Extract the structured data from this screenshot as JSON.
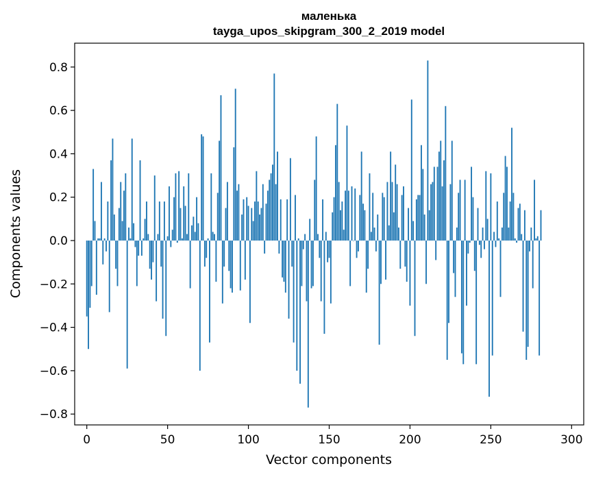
{
  "chart_data": {
    "type": "bar",
    "title": "маленька",
    "subtitle": "tayga_upos_skipgram_300_2_2019 model",
    "xlabel": "Vector components",
    "ylabel": "Components values",
    "xlim": [
      -7.5,
      307.5
    ],
    "ylim": [
      -0.85,
      0.91
    ],
    "xticks": [
      0,
      50,
      100,
      150,
      200,
      250,
      300
    ],
    "xtick_labels": [
      "0",
      "50",
      "100",
      "150",
      "200",
      "250",
      "300"
    ],
    "yticks": [
      -0.8,
      -0.6,
      -0.4,
      -0.2,
      0.0,
      0.2,
      0.4,
      0.6,
      0.8
    ],
    "ytick_labels": [
      "−0.8",
      "−0.6",
      "−0.4",
      "−0.2",
      "0.0",
      "0.2",
      "0.4",
      "0.6",
      "0.8"
    ],
    "grid": false,
    "bar_color": "#1f77b4",
    "values": [
      -0.35,
      -0.5,
      -0.31,
      -0.21,
      0.33,
      0.09,
      -0.25,
      0.01,
      0.01,
      0.27,
      -0.11,
      0.01,
      -0.05,
      0.18,
      -0.33,
      0.37,
      0.47,
      0.12,
      -0.13,
      -0.21,
      0.15,
      0.27,
      0.09,
      0.23,
      0.31,
      -0.59,
      0.06,
      0.01,
      0.47,
      0.08,
      -0.03,
      -0.21,
      -0.07,
      0.37,
      -0.07,
      0.01,
      0.1,
      0.18,
      0.03,
      -0.13,
      -0.18,
      -0.1,
      0.3,
      -0.28,
      0.03,
      0.18,
      -0.12,
      -0.36,
      0.18,
      -0.44,
      0.02,
      0.25,
      -0.03,
      0.05,
      0.2,
      0.31,
      -0.01,
      0.32,
      0.15,
      0.01,
      0.25,
      0.16,
      0.03,
      0.31,
      -0.22,
      0.07,
      0.11,
      0.04,
      0.2,
      0.08,
      -0.6,
      0.49,
      0.48,
      -0.12,
      -0.08,
      0.01,
      -0.47,
      0.31,
      0.04,
      0.03,
      -0.19,
      0.22,
      0.46,
      0.67,
      -0.29,
      -0.12,
      0.15,
      0.27,
      -0.14,
      -0.22,
      -0.24,
      0.43,
      0.7,
      0.23,
      0.26,
      -0.23,
      0.12,
      0.19,
      -0.18,
      0.2,
      0.16,
      -0.38,
      0.15,
      0.09,
      0.18,
      0.32,
      0.18,
      0.12,
      0.15,
      0.26,
      -0.06,
      0.17,
      0.23,
      0.28,
      0.31,
      0.35,
      0.77,
      0.26,
      0.41,
      -0.06,
      0.19,
      -0.17,
      -0.19,
      -0.24,
      0.19,
      -0.36,
      0.38,
      -0.12,
      -0.47,
      0.21,
      -0.6,
      0.01,
      -0.66,
      -0.21,
      -0.04,
      0.03,
      -0.28,
      -0.77,
      0.1,
      -0.22,
      -0.21,
      0.28,
      0.48,
      0.03,
      -0.08,
      -0.28,
      0.19,
      -0.43,
      0.04,
      -0.1,
      -0.08,
      -0.29,
      0.13,
      0.2,
      0.44,
      0.63,
      0.27,
      0.14,
      0.18,
      0.05,
      0.23,
      0.53,
      0.23,
      -0.21,
      0.25,
      0.0,
      0.24,
      -0.08,
      -0.05,
      0.21,
      0.41,
      0.17,
      0.14,
      -0.24,
      -0.13,
      0.31,
      0.04,
      0.22,
      0.06,
      -0.05,
      0.12,
      -0.48,
      -0.2,
      0.22,
      0.2,
      -0.18,
      0.27,
      0.07,
      0.41,
      0.27,
      0.13,
      0.35,
      0.26,
      0.06,
      -0.13,
      0.21,
      0.25,
      -0.12,
      -0.19,
      0.15,
      -0.3,
      0.65,
      0.09,
      -0.44,
      0.19,
      0.21,
      0.21,
      0.44,
      0.33,
      0.12,
      -0.2,
      0.83,
      0.14,
      0.26,
      0.27,
      0.34,
      -0.09,
      0.34,
      0.41,
      0.46,
      0.25,
      0.37,
      0.62,
      -0.55,
      -0.38,
      0.26,
      0.46,
      -0.15,
      -0.26,
      0.06,
      0.22,
      0.28,
      -0.52,
      -0.57,
      0.28,
      -0.3,
      -0.06,
      -0.01,
      0.34,
      0.2,
      -0.14,
      -0.57,
      0.15,
      -0.02,
      -0.08,
      0.06,
      -0.04,
      0.32,
      0.1,
      -0.72,
      0.31,
      -0.53,
      0.04,
      -0.03,
      0.18,
      0.01,
      -0.26,
      0.06,
      0.22,
      0.39,
      0.34,
      0.06,
      0.18,
      0.52,
      0.22,
      0.01,
      -0.01,
      0.15,
      0.17,
      0.03,
      -0.42,
      0.14,
      -0.55,
      -0.49,
      -0.05,
      0.06,
      -0.22,
      0.28,
      0.01,
      0.02,
      -0.53,
      0.14
    ]
  }
}
